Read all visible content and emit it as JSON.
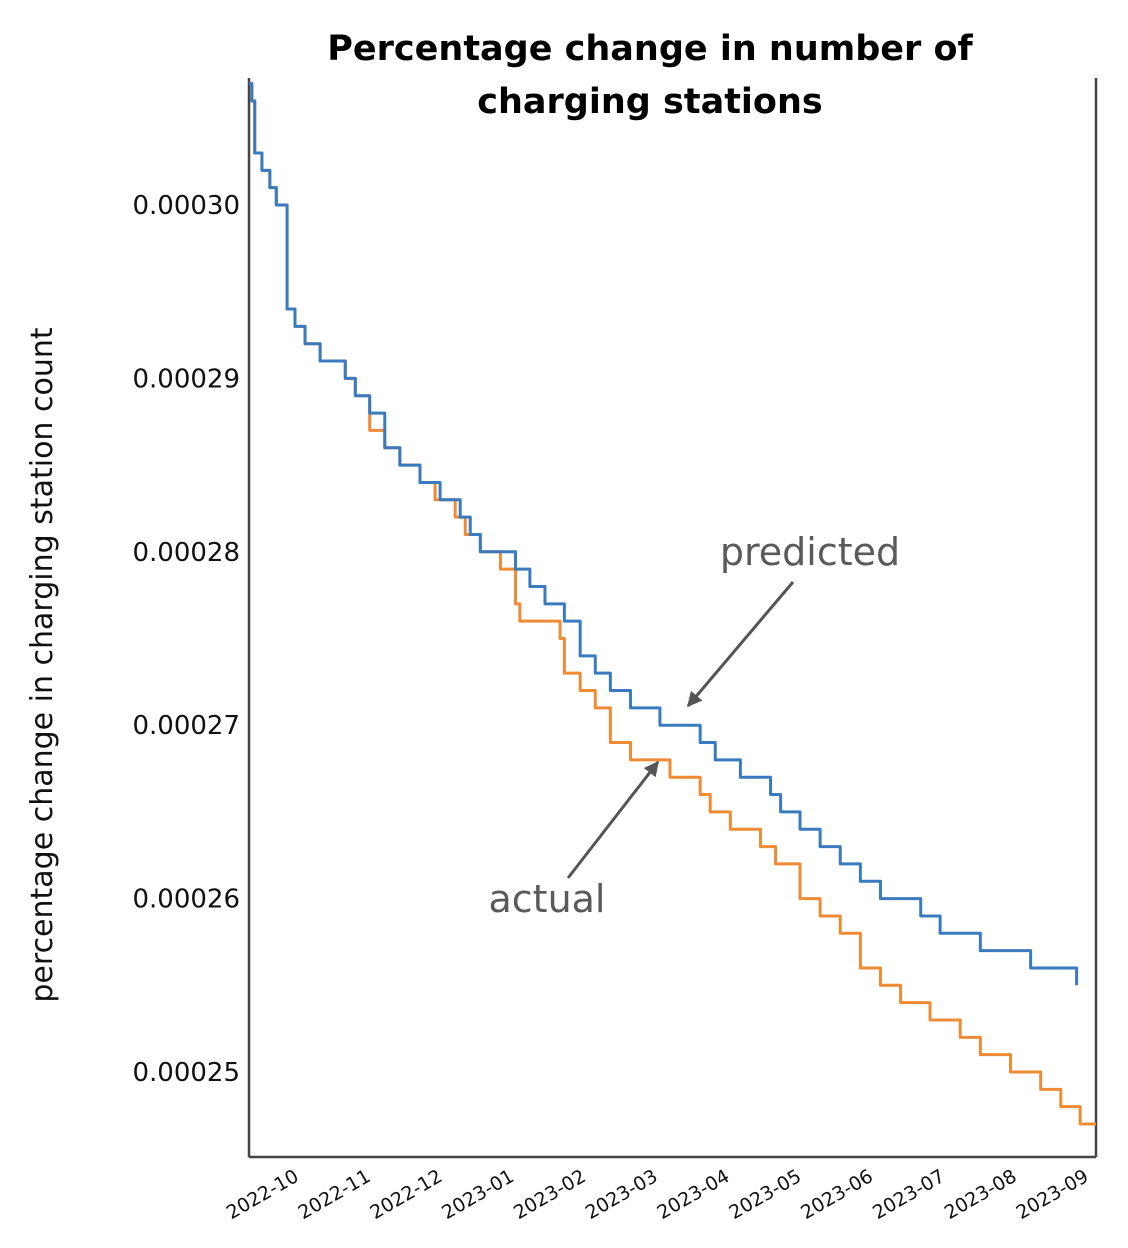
{
  "chart_data": {
    "type": "line",
    "title_lines": [
      "Percentage change in number of",
      "charging stations"
    ],
    "title": "Percentage change in number of charging stations",
    "xlabel": "",
    "ylabel": "percentage change in charging station count",
    "x_unit": "months since 2022-10-01",
    "xlim": [
      -0.71,
      11.08
    ],
    "ylim": [
      0.000245,
      0.000307
    ],
    "grid": false,
    "legend": "none (inline annotations)",
    "x_ticks": [
      {
        "label": "2022-10",
        "value": 0
      },
      {
        "label": "2022-11",
        "value": 1
      },
      {
        "label": "2022-12",
        "value": 2
      },
      {
        "label": "2023-01",
        "value": 3
      },
      {
        "label": "2023-02",
        "value": 4
      },
      {
        "label": "2023-03",
        "value": 5
      },
      {
        "label": "2023-04",
        "value": 6
      },
      {
        "label": "2023-05",
        "value": 7
      },
      {
        "label": "2023-06",
        "value": 8
      },
      {
        "label": "2023-07",
        "value": 9
      },
      {
        "label": "2023-08",
        "value": 10
      },
      {
        "label": "2023-09",
        "value": 11
      }
    ],
    "y_ticks": [
      {
        "label": "0.00030",
        "value": 0.0003
      },
      {
        "label": "0.00029",
        "value": 0.00029
      },
      {
        "label": "0.00028",
        "value": 0.00028
      },
      {
        "label": "0.00027",
        "value": 0.00027
      },
      {
        "label": "0.00026",
        "value": 0.00026
      },
      {
        "label": "0.00025",
        "value": 0.00025
      }
    ],
    "series": [
      {
        "name": "predicted",
        "color": "#3a7bbf",
        "x": [
          -0.71,
          -0.67,
          -0.63,
          -0.53,
          -0.42,
          -0.33,
          -0.21,
          -0.18,
          -0.18,
          -0.07,
          0.07,
          0.28,
          0.63,
          0.77,
          0.97,
          1.18,
          1.39,
          1.67,
          1.95,
          2.23,
          2.37,
          2.51,
          2.79,
          3.0,
          3.2,
          3.41,
          3.62,
          3.68,
          3.9,
          4.11,
          4.32,
          4.6,
          5.01,
          5.29,
          5.57,
          5.78,
          6.13,
          6.55,
          6.69,
          6.96,
          7.24,
          7.52,
          7.8,
          8.08,
          8.36,
          8.64,
          8.91,
          9.19,
          9.47,
          9.75,
          10.17,
          10.45,
          10.81
        ],
        "y": [
          0.000307,
          0.000306,
          0.000303,
          0.000302,
          0.000301,
          0.0003,
          0.0003,
          0.000299,
          0.000294,
          0.000293,
          0.000292,
          0.000291,
          0.00029,
          0.000289,
          0.000288,
          0.000286,
          0.000285,
          0.000284,
          0.000283,
          0.000282,
          0.000281,
          0.00028,
          0.00028,
          0.000279,
          0.000278,
          0.000277,
          0.000277,
          0.000276,
          0.000274,
          0.000273,
          0.000272,
          0.000271,
          0.00027,
          0.00027,
          0.000269,
          0.000268,
          0.000267,
          0.000266,
          0.000265,
          0.000264,
          0.000263,
          0.000262,
          0.000261,
          0.00026,
          0.00026,
          0.000259,
          0.000258,
          0.000258,
          0.000257,
          0.000257,
          0.000256,
          0.000256,
          0.000255
        ]
      },
      {
        "name": "actual",
        "color": "#ef8a35",
        "x": [
          -0.71,
          -0.67,
          -0.63,
          -0.53,
          -0.42,
          -0.33,
          -0.21,
          -0.18,
          -0.18,
          -0.07,
          0.07,
          0.28,
          0.63,
          0.77,
          0.97,
          1.18,
          1.39,
          1.67,
          1.88,
          2.16,
          2.3,
          2.51,
          2.79,
          3.0,
          3.06,
          3.34,
          3.62,
          3.68,
          3.9,
          4.11,
          4.32,
          4.6,
          5.01,
          5.15,
          5.57,
          5.71,
          5.99,
          6.41,
          6.62,
          6.96,
          7.24,
          7.52,
          7.8,
          8.08,
          8.36,
          8.77,
          9.19,
          9.47,
          9.89,
          10.31,
          10.59,
          10.86,
          11.08
        ],
        "y": [
          0.000307,
          0.000306,
          0.000303,
          0.000302,
          0.000301,
          0.0003,
          0.0003,
          0.000299,
          0.000294,
          0.000293,
          0.000292,
          0.000291,
          0.00029,
          0.000289,
          0.000287,
          0.000286,
          0.000285,
          0.000284,
          0.000283,
          0.000282,
          0.000281,
          0.00028,
          0.000279,
          0.000277,
          0.000276,
          0.000276,
          0.000275,
          0.000273,
          0.000272,
          0.000271,
          0.000269,
          0.000268,
          0.000268,
          0.000267,
          0.000266,
          0.000265,
          0.000264,
          0.000263,
          0.000262,
          0.00026,
          0.000259,
          0.000258,
          0.000256,
          0.000255,
          0.000254,
          0.000253,
          0.000252,
          0.000251,
          0.00025,
          0.000249,
          0.000248,
          0.000247,
          0.000247
        ]
      }
    ],
    "annotations": [
      {
        "text": "predicted",
        "series": "predicted",
        "point_x": 5.29,
        "point_y": 0.00027
      },
      {
        "text": "actual",
        "series": "actual",
        "point_x": 5.01,
        "point_y": 0.000268
      }
    ]
  }
}
